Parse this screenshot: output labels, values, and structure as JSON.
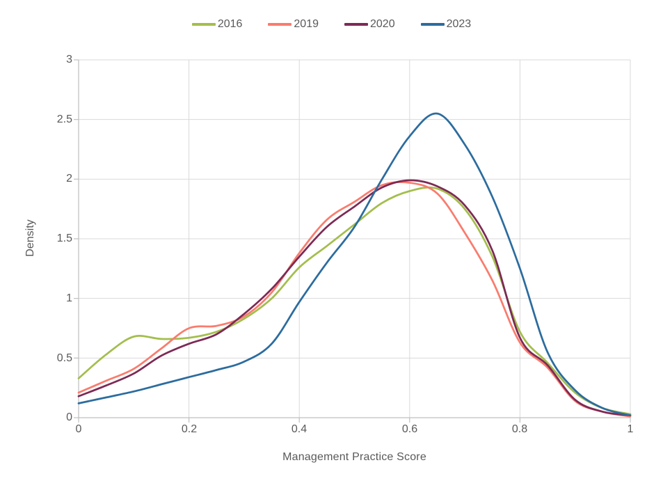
{
  "styles": {
    "background": "#ffffff",
    "grid_color": "#d9d9d9",
    "axis_color": "#bfbfbf",
    "tick_color": "#bfbfbf",
    "text_color": "#595959"
  },
  "chart_data": {
    "type": "line",
    "subtype": "kde-density",
    "title": "",
    "xlabel": "Management Practice Score",
    "ylabel": "Density",
    "xlim": [
      0,
      1
    ],
    "ylim": [
      0,
      3
    ],
    "grid": "both",
    "legend_position": "top-center",
    "x_ticks": [
      0,
      0.2,
      0.4,
      0.6,
      0.8,
      1
    ],
    "x_tick_labels": [
      "0",
      "0.2",
      "0.4",
      "0.6",
      "0.8",
      "1"
    ],
    "y_ticks": [
      0,
      0.5,
      1,
      1.5,
      2,
      2.5,
      3
    ],
    "y_tick_labels": [
      "0",
      "0.5",
      "1",
      "1.5",
      "2",
      "2.5",
      "3"
    ],
    "x": [
      0,
      0.05,
      0.1,
      0.15,
      0.2,
      0.25,
      0.3,
      0.35,
      0.4,
      0.45,
      0.5,
      0.55,
      0.6,
      0.65,
      0.7,
      0.75,
      0.8,
      0.85,
      0.9,
      0.95,
      1.0
    ],
    "series": [
      {
        "name": "2016",
        "color": "#a3be4c",
        "values": [
          0.33,
          0.53,
          0.68,
          0.66,
          0.67,
          0.72,
          0.83,
          1.0,
          1.26,
          1.44,
          1.62,
          1.8,
          1.9,
          1.92,
          1.75,
          1.35,
          0.72,
          0.46,
          0.21,
          0.08,
          0.03
        ]
      },
      {
        "name": "2019",
        "color": "#f97c6e",
        "values": [
          0.21,
          0.31,
          0.41,
          0.58,
          0.75,
          0.77,
          0.85,
          1.05,
          1.38,
          1.66,
          1.81,
          1.95,
          1.97,
          1.88,
          1.55,
          1.15,
          0.63,
          0.42,
          0.14,
          0.05,
          0.01
        ]
      },
      {
        "name": "2020",
        "color": "#7c2a55",
        "values": [
          0.18,
          0.27,
          0.37,
          0.52,
          0.62,
          0.7,
          0.87,
          1.08,
          1.35,
          1.6,
          1.77,
          1.93,
          1.99,
          1.94,
          1.78,
          1.4,
          0.67,
          0.44,
          0.15,
          0.05,
          0.02
        ]
      },
      {
        "name": "2023",
        "color": "#2c6c9e",
        "values": [
          0.12,
          0.17,
          0.22,
          0.28,
          0.34,
          0.4,
          0.47,
          0.62,
          0.97,
          1.3,
          1.6,
          2.0,
          2.36,
          2.55,
          2.29,
          1.85,
          1.25,
          0.55,
          0.23,
          0.08,
          0.02
        ]
      }
    ]
  }
}
